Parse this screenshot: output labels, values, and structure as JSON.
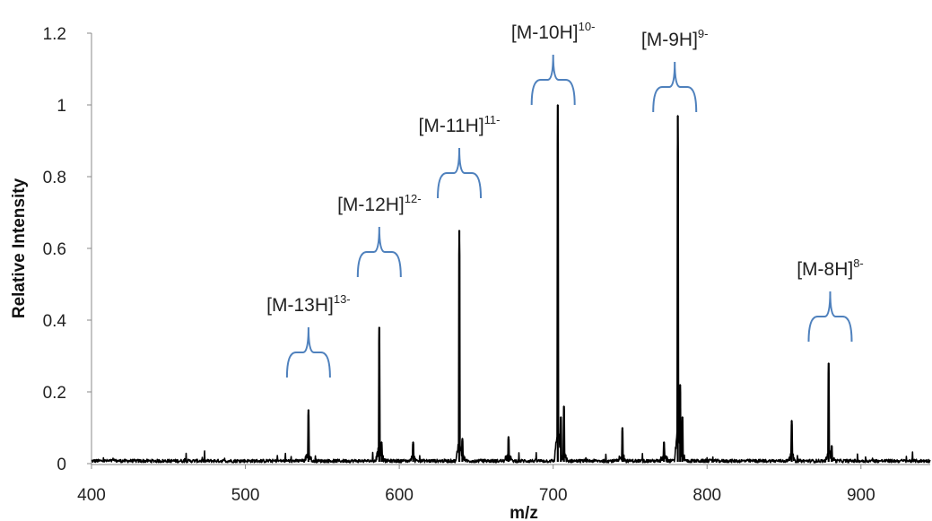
{
  "chart_data": {
    "type": "line",
    "xlabel": "m/z",
    "ylabel": "Relative Intensity",
    "xlim": [
      400,
      945
    ],
    "ylim": [
      0,
      1.2
    ],
    "x_ticks": [
      400,
      500,
      600,
      700,
      800,
      900
    ],
    "x_tick_labels": [
      "400",
      "500",
      "600",
      "700",
      "800",
      "900"
    ],
    "y_ticks": [
      0,
      0.2,
      0.4,
      0.6,
      0.8,
      1.0,
      1.2
    ],
    "y_tick_labels": [
      "0",
      "0.2",
      "0.4",
      "0.6",
      "0.8",
      "1",
      "1.2"
    ],
    "grid": false,
    "line_color": "#000000",
    "bracket_color": "#4f81bd",
    "baseline_noise": 0.01,
    "peaks": [
      {
        "x": 541,
        "y": 0.15
      },
      {
        "x": 587,
        "y": 0.38
      },
      {
        "x": 588.5,
        "y": 0.06
      },
      {
        "x": 609,
        "y": 0.06
      },
      {
        "x": 639,
        "y": 0.65
      },
      {
        "x": 641,
        "y": 0.07
      },
      {
        "x": 671,
        "y": 0.075
      },
      {
        "x": 703,
        "y": 1.0
      },
      {
        "x": 705,
        "y": 0.13
      },
      {
        "x": 707,
        "y": 0.16
      },
      {
        "x": 745,
        "y": 0.1
      },
      {
        "x": 772,
        "y": 0.06
      },
      {
        "x": 781,
        "y": 0.97
      },
      {
        "x": 782.5,
        "y": 0.22
      },
      {
        "x": 784,
        "y": 0.13
      },
      {
        "x": 855,
        "y": 0.12
      },
      {
        "x": 879,
        "y": 0.28
      },
      {
        "x": 881,
        "y": 0.05
      }
    ],
    "annotations": [
      {
        "base": "[M-13H]",
        "sup": "13-",
        "x": 541,
        "bracket_y": 0.31
      },
      {
        "base": "[M-12H]",
        "sup": "12-",
        "x": 587,
        "bracket_y": 0.59
      },
      {
        "base": "[M-11H]",
        "sup": "11-",
        "x": 639,
        "bracket_y": 0.81
      },
      {
        "base": "[M-10H]",
        "sup": "10-",
        "x": 700,
        "bracket_y": 1.07
      },
      {
        "base": "[M-9H]",
        "sup": "9-",
        "x": 779,
        "bracket_y": 1.05
      },
      {
        "base": "[M-8H]",
        "sup": "8-",
        "x": 880,
        "bracket_y": 0.41
      }
    ]
  }
}
